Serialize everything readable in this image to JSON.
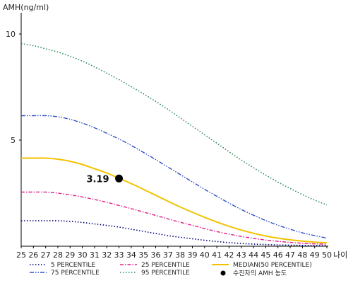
{
  "chart_data": {
    "type": "line",
    "ylabel": "AMH(ng/ml)",
    "xlabel": "나이",
    "xlim": [
      25,
      50
    ],
    "ylim": [
      0,
      11
    ],
    "x_ticks": [
      25,
      26,
      27,
      28,
      29,
      30,
      31,
      32,
      33,
      34,
      35,
      36,
      37,
      38,
      39,
      40,
      41,
      42,
      43,
      44,
      45,
      46,
      47,
      48,
      49,
      50
    ],
    "y_ticks": [
      5,
      10
    ],
    "grid": false,
    "legend_position": "bottom",
    "series": [
      {
        "name": "5 PERCENTILE",
        "color": "#000080",
        "dash": "dot",
        "x": [
          25,
          26,
          27,
          28,
          29,
          30,
          31,
          32,
          33,
          34,
          35,
          36,
          37,
          38,
          39,
          40,
          41,
          42,
          43,
          44,
          45,
          46,
          47,
          48,
          49,
          50
        ],
        "y": [
          1.2,
          1.2,
          1.2,
          1.2,
          1.17,
          1.12,
          1.05,
          0.98,
          0.9,
          0.8,
          0.7,
          0.6,
          0.5,
          0.42,
          0.35,
          0.28,
          0.22,
          0.17,
          0.13,
          0.1,
          0.08,
          0.06,
          0.05,
          0.04,
          0.03,
          0.03
        ]
      },
      {
        "name": "25 PERCENTILE",
        "color": "#e0208a",
        "dash": "dashdot",
        "x": [
          25,
          26,
          27,
          28,
          29,
          30,
          31,
          32,
          33,
          34,
          35,
          36,
          37,
          38,
          39,
          40,
          41,
          42,
          43,
          44,
          45,
          46,
          47,
          48,
          49,
          50
        ],
        "y": [
          2.55,
          2.55,
          2.55,
          2.5,
          2.42,
          2.32,
          2.2,
          2.07,
          1.92,
          1.77,
          1.61,
          1.45,
          1.29,
          1.13,
          0.98,
          0.83,
          0.69,
          0.57,
          0.46,
          0.37,
          0.29,
          0.23,
          0.18,
          0.14,
          0.11,
          0.1
        ]
      },
      {
        "name": "MEDIAN(50 PERCENTILE)",
        "color": "#f2c200",
        "dash": "solid",
        "x": [
          25,
          26,
          27,
          28,
          29,
          30,
          31,
          32,
          33,
          34,
          35,
          36,
          37,
          38,
          39,
          40,
          41,
          42,
          43,
          44,
          45,
          46,
          47,
          48,
          49,
          50
        ],
        "y": [
          4.15,
          4.15,
          4.15,
          4.1,
          4.0,
          3.85,
          3.65,
          3.45,
          3.2,
          2.95,
          2.68,
          2.4,
          2.12,
          1.85,
          1.6,
          1.36,
          1.14,
          0.94,
          0.76,
          0.61,
          0.48,
          0.38,
          0.3,
          0.24,
          0.19,
          0.16
        ]
      },
      {
        "name": "75 PERCENTILE",
        "color": "#3050c8",
        "dash": "dashdotdot",
        "x": [
          25,
          26,
          27,
          28,
          29,
          30,
          31,
          32,
          33,
          34,
          35,
          36,
          37,
          38,
          39,
          40,
          41,
          42,
          43,
          44,
          45,
          46,
          47,
          48,
          49,
          50
        ],
        "y": [
          6.15,
          6.15,
          6.15,
          6.1,
          5.98,
          5.8,
          5.58,
          5.32,
          5.05,
          4.75,
          4.42,
          4.08,
          3.73,
          3.38,
          3.03,
          2.68,
          2.35,
          2.03,
          1.73,
          1.46,
          1.21,
          0.99,
          0.8,
          0.63,
          0.5,
          0.38
        ]
      },
      {
        "name": "95 PERCENTILE",
        "color": "#2e8b57",
        "dash": "dot",
        "x": [
          25,
          26,
          27,
          28,
          29,
          30,
          31,
          32,
          33,
          34,
          35,
          36,
          37,
          38,
          39,
          40,
          41,
          42,
          43,
          44,
          45,
          46,
          47,
          48,
          49,
          50
        ],
        "y": [
          9.55,
          9.45,
          9.3,
          9.15,
          8.95,
          8.72,
          8.45,
          8.15,
          7.85,
          7.52,
          7.18,
          6.82,
          6.45,
          6.05,
          5.65,
          5.25,
          4.85,
          4.45,
          4.06,
          3.7,
          3.35,
          3.02,
          2.72,
          2.43,
          2.17,
          1.95
        ]
      }
    ],
    "highlight_point": {
      "name": "수진자의 AMH 농도",
      "x": 33,
      "y": 3.19,
      "label": "3.19",
      "color": "#000000"
    }
  }
}
